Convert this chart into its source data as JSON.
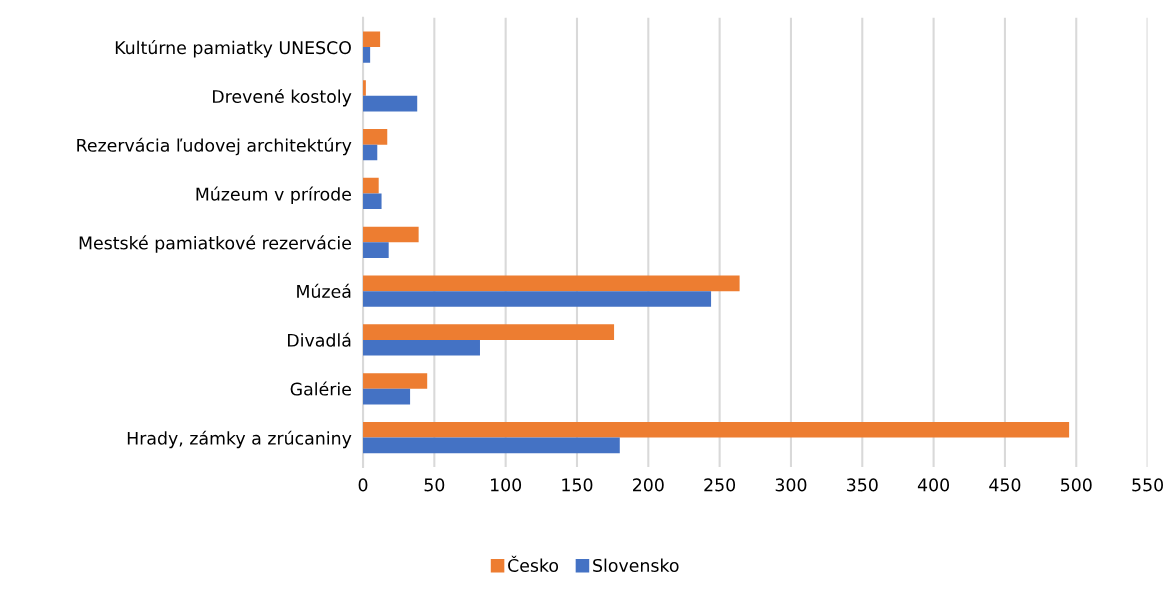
{
  "chart_data": {
    "type": "bar",
    "orientation": "horizontal",
    "categories": [
      "Kultúrne pamiatky UNESCO",
      "Drevené kostoly",
      "Rezervácia ľudovej architektúry",
      "Múzeum v prírode",
      "Mestské pamiatkové rezervácie",
      "Múzeá",
      "Divadlá",
      "Galérie",
      "Hrady, zámky a zrúcaniny"
    ],
    "series": [
      {
        "name": "Česko",
        "color": "#ed7d31",
        "values": [
          12,
          2,
          17,
          11,
          39,
          264,
          176,
          45,
          495
        ]
      },
      {
        "name": "Slovensko",
        "color": "#4472c4",
        "values": [
          5,
          38,
          10,
          13,
          18,
          244,
          82,
          33,
          180
        ]
      }
    ],
    "xlim": [
      0,
      550
    ],
    "xticks": [
      0,
      50,
      100,
      150,
      200,
      250,
      300,
      350,
      400,
      450,
      500,
      550
    ],
    "grid": "x",
    "legend": "bottom"
  }
}
